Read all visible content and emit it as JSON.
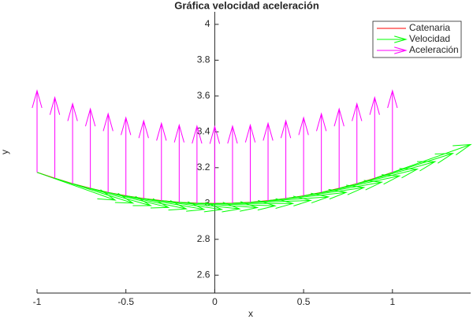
{
  "chart_data": {
    "type": "quiver",
    "title": "Gráfica velocidad aceleración",
    "x_label": "x",
    "y_label": "y",
    "x": [
      -1,
      -0.9,
      -0.8,
      -0.7,
      -0.6,
      -0.5,
      -0.4,
      -0.3,
      -0.2,
      -0.1,
      0,
      0.1,
      0.2,
      0.3,
      0.4,
      0.5,
      0.6,
      0.7,
      0.8,
      0.9,
      1
    ],
    "y": [
      3.174,
      3.141,
      3.111,
      3.085,
      3.062,
      3.043,
      3.028,
      3.016,
      3.007,
      3.002,
      3,
      3.002,
      3.007,
      3.016,
      3.028,
      3.043,
      3.062,
      3.085,
      3.111,
      3.141,
      3.174
    ],
    "series": [
      {
        "name": "Catenaria",
        "color": "#ff0000",
        "kind": "line"
      },
      {
        "name": "Velocidad",
        "color": "#00ff00",
        "kind": "arrows",
        "u": [
          0.44,
          0.44,
          0.44,
          0.44,
          0.44,
          0.44,
          0.44,
          0.44,
          0.44,
          0.44,
          0.44,
          0.44,
          0.44,
          0.44,
          0.44,
          0.44,
          0.44,
          0.44,
          0.44,
          0.44,
          0.44
        ],
        "v": [
          -0.155,
          -0.139,
          -0.123,
          -0.107,
          -0.092,
          -0.076,
          -0.061,
          -0.046,
          -0.03,
          -0.015,
          0,
          0.015,
          0.03,
          0.046,
          0.061,
          0.076,
          0.092,
          0.107,
          0.123,
          0.139,
          0.155
        ]
      },
      {
        "name": "Aceleración",
        "color": "#ff00ff",
        "kind": "arrows",
        "u": [
          0,
          0,
          0,
          0,
          0,
          0,
          0,
          0,
          0,
          0,
          0,
          0,
          0,
          0,
          0,
          0,
          0,
          0,
          0,
          0,
          0
        ],
        "v": [
          0.456,
          0.451,
          0.446,
          0.443,
          0.439,
          0.436,
          0.434,
          0.432,
          0.431,
          0.43,
          0.43,
          0.43,
          0.431,
          0.432,
          0.434,
          0.436,
          0.439,
          0.443,
          0.446,
          0.451,
          0.456
        ]
      }
    ],
    "xlim": [
      -1,
      1.44
    ],
    "ylim": [
      2.5,
      4.07
    ],
    "xticks": [
      -1,
      -0.5,
      0,
      0.5,
      1
    ],
    "yticks": [
      2.6,
      2.8,
      3,
      3.2,
      3.4,
      3.6,
      3.8,
      4
    ],
    "legend": "top-right"
  }
}
